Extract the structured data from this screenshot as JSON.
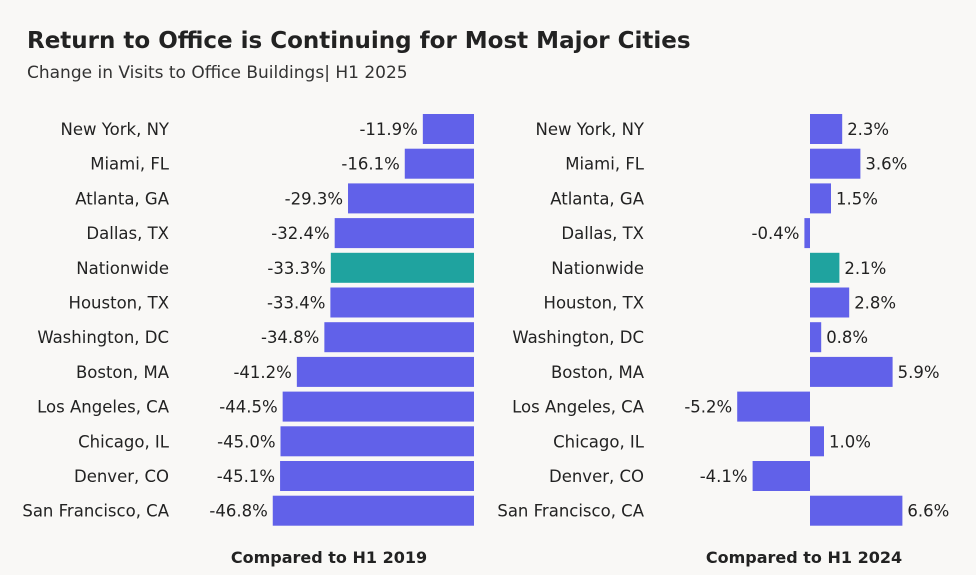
{
  "title": "Return to Office is Continuing for Most Major Cities",
  "subtitle": "Change in Visits to Office Buildings| H1 2025",
  "colors": {
    "bar": "#6161e9",
    "highlight": "#1fa39f",
    "background": "#f9f8f6"
  },
  "chart_data": [
    {
      "type": "bar",
      "orientation": "horizontal",
      "xlabel": "Compared to H1 2019",
      "categories": [
        "New York, NY",
        "Miami, FL",
        "Atlanta, GA",
        "Dallas, TX",
        "Nationwide",
        "Houston, TX",
        "Washington, DC",
        "Boston, MA",
        "Los Angeles, CA",
        "Chicago, IL",
        "Denver, CO",
        "San Francisco, CA"
      ],
      "values": [
        -11.9,
        -16.1,
        -29.3,
        -32.4,
        -33.3,
        -33.4,
        -34.8,
        -41.2,
        -44.5,
        -45.0,
        -45.1,
        -46.8
      ],
      "labels": [
        "-11.9%",
        "-16.1%",
        "-29.3%",
        "-32.4%",
        "-33.3%",
        "-33.4%",
        "-34.8%",
        "-41.2%",
        "-44.5%",
        "-45.0%",
        "-45.1%",
        "-46.8%"
      ],
      "highlight": "Nationwide",
      "xlim": [
        -50,
        0
      ]
    },
    {
      "type": "bar",
      "orientation": "horizontal",
      "xlabel": "Compared to H1 2024",
      "categories": [
        "New York, NY",
        "Miami, FL",
        "Atlanta, GA",
        "Dallas, TX",
        "Nationwide",
        "Houston, TX",
        "Washington, DC",
        "Boston, MA",
        "Los Angeles, CA",
        "Chicago, IL",
        "Denver, CO",
        "San Francisco, CA"
      ],
      "values": [
        2.3,
        3.6,
        1.5,
        -0.4,
        2.1,
        2.8,
        0.8,
        5.9,
        -5.2,
        1.0,
        -4.1,
        6.6
      ],
      "labels": [
        "2.3%",
        "3.6%",
        "1.5%",
        "-0.4%",
        "2.1%",
        "2.8%",
        "0.8%",
        "5.9%",
        "-5.2%",
        "1.0%",
        "-4.1%",
        "6.6%"
      ],
      "highlight": "Nationwide",
      "xlim": [
        -6,
        7
      ]
    }
  ]
}
